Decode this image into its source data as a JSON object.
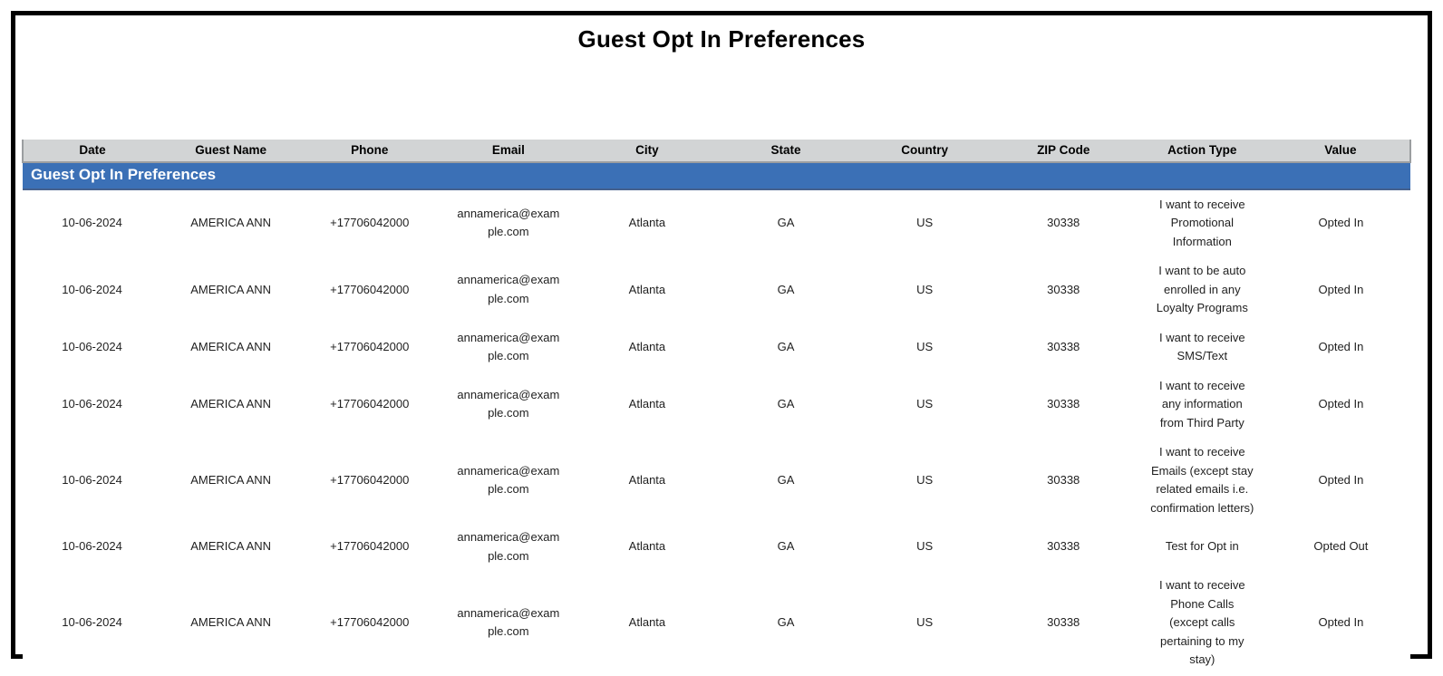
{
  "page": {
    "title": "Guest Opt In Preferences"
  },
  "colors": {
    "band_blue": "#3b70b6",
    "band_border_dark": "#2c4f7d",
    "header_gray": "#d2d4d5",
    "text_black": "#1a1a1a"
  },
  "table": {
    "band_title": "Guest Opt In Preferences",
    "columns": [
      "Date",
      "Guest Name",
      "Phone",
      "Email",
      "City",
      "State",
      "Country",
      "ZIP Code",
      "Action Type",
      "Value"
    ],
    "rows": [
      {
        "date": "10-06-2024",
        "guest_name": "AMERICA ANN",
        "phone": "+17706042000",
        "email": "annamerica@example.com",
        "city": "Atlanta",
        "state": "GA",
        "country": "US",
        "zip": "30338",
        "action_type": "I want to receive\nPromotional\nInformation",
        "value": "Opted In"
      },
      {
        "date": "10-06-2024",
        "guest_name": "AMERICA ANN",
        "phone": "+17706042000",
        "email": "annamerica@example.com",
        "city": "Atlanta",
        "state": "GA",
        "country": "US",
        "zip": "30338",
        "action_type": "I want to be auto\nenrolled in any\nLoyalty Programs",
        "value": "Opted In"
      },
      {
        "date": "10-06-2024",
        "guest_name": "AMERICA ANN",
        "phone": "+17706042000",
        "email": "annamerica@example.com",
        "city": "Atlanta",
        "state": "GA",
        "country": "US",
        "zip": "30338",
        "action_type": "I want to receive\nSMS/Text",
        "value": "Opted In"
      },
      {
        "date": "10-06-2024",
        "guest_name": "AMERICA ANN",
        "phone": "+17706042000",
        "email": "annamerica@example.com",
        "city": "Atlanta",
        "state": "GA",
        "country": "US",
        "zip": "30338",
        "action_type": "I want to receive\nany information\nfrom Third Party",
        "value": "Opted In"
      },
      {
        "date": "10-06-2024",
        "guest_name": "AMERICA ANN",
        "phone": "+17706042000",
        "email": "annamerica@example.com",
        "city": "Atlanta",
        "state": "GA",
        "country": "US",
        "zip": "30338",
        "action_type": "I want to receive\nEmails (except stay\nrelated emails i.e.\nconfirmation letters)",
        "value": "Opted In"
      },
      {
        "date": "10-06-2024",
        "guest_name": "AMERICA ANN",
        "phone": "+17706042000",
        "email": "annamerica@example.com",
        "city": "Atlanta",
        "state": "GA",
        "country": "US",
        "zip": "30338",
        "action_type": "Test for Opt in",
        "value": "Opted Out"
      },
      {
        "date": "10-06-2024",
        "guest_name": "AMERICA ANN",
        "phone": "+17706042000",
        "email": "annamerica@example.com",
        "city": "Atlanta",
        "state": "GA",
        "country": "US",
        "zip": "30338",
        "action_type": "I want to receive\nPhone Calls\n(except calls\npertaining to my\nstay)",
        "value": "Opted In"
      }
    ]
  }
}
